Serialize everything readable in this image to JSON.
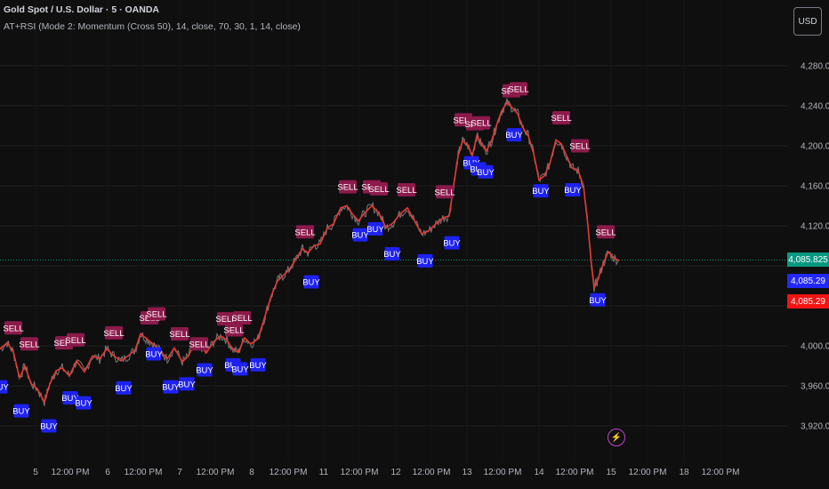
{
  "header": {
    "title": "Gold Spot / U.S. Dollar · 5 · OANDA",
    "indicator": "AT+RSI (Mode 2: Momentum (Cross 50), 14, close, 70, 30, 1, 14, close)",
    "currency": "USD"
  },
  "price_labels": [
    {
      "text": "4,085.825",
      "color": "#089981"
    },
    {
      "text": "4,085.29",
      "color": "#2229ff"
    },
    {
      "text": "4,085.29",
      "color": "#f21313"
    }
  ],
  "chart_data": {
    "type": "line",
    "series": [
      {
        "values": [
          {
            "x": 0,
            "y": 3997
          },
          {
            "x": 8,
            "y": 4003
          },
          {
            "x": 15,
            "y": 3994
          },
          {
            "x": 22,
            "y": 3968
          },
          {
            "x": 28,
            "y": 3980
          },
          {
            "x": 35,
            "y": 3962
          },
          {
            "x": 42,
            "y": 3957
          },
          {
            "x": 50,
            "y": 3944
          },
          {
            "x": 56,
            "y": 3962
          },
          {
            "x": 63,
            "y": 3975
          },
          {
            "x": 70,
            "y": 3978
          },
          {
            "x": 78,
            "y": 3970
          },
          {
            "x": 86,
            "y": 3985
          },
          {
            "x": 95,
            "y": 3974
          },
          {
            "x": 104,
            "y": 3990
          },
          {
            "x": 112,
            "y": 3987
          },
          {
            "x": 120,
            "y": 3997
          },
          {
            "x": 128,
            "y": 3990
          },
          {
            "x": 136,
            "y": 3985
          },
          {
            "x": 144,
            "y": 3990
          },
          {
            "x": 152,
            "y": 3996
          },
          {
            "x": 158,
            "y": 4012
          },
          {
            "x": 165,
            "y": 4007
          },
          {
            "x": 172,
            "y": 4002
          },
          {
            "x": 180,
            "y": 3995
          },
          {
            "x": 188,
            "y": 3987
          },
          {
            "x": 196,
            "y": 3998
          },
          {
            "x": 205,
            "y": 3984
          },
          {
            "x": 212,
            "y": 3990
          },
          {
            "x": 218,
            "y": 4002
          },
          {
            "x": 226,
            "y": 3999
          },
          {
            "x": 232,
            "y": 3993
          },
          {
            "x": 240,
            "y": 4004
          },
          {
            "x": 248,
            "y": 4010
          },
          {
            "x": 255,
            "y": 4006
          },
          {
            "x": 262,
            "y": 3996
          },
          {
            "x": 268,
            "y": 3994
          },
          {
            "x": 275,
            "y": 4008
          },
          {
            "x": 282,
            "y": 4002
          },
          {
            "x": 290,
            "y": 4007
          },
          {
            "x": 298,
            "y": 4030
          },
          {
            "x": 305,
            "y": 4050
          },
          {
            "x": 312,
            "y": 4065
          },
          {
            "x": 318,
            "y": 4070
          },
          {
            "x": 325,
            "y": 4076
          },
          {
            "x": 333,
            "y": 4087
          },
          {
            "x": 340,
            "y": 4097
          },
          {
            "x": 346,
            "y": 4093
          },
          {
            "x": 353,
            "y": 4100
          },
          {
            "x": 360,
            "y": 4102
          },
          {
            "x": 368,
            "y": 4118
          },
          {
            "x": 375,
            "y": 4122
          },
          {
            "x": 383,
            "y": 4138
          },
          {
            "x": 390,
            "y": 4140
          },
          {
            "x": 396,
            "y": 4132
          },
          {
            "x": 403,
            "y": 4125
          },
          {
            "x": 410,
            "y": 4133
          },
          {
            "x": 418,
            "y": 4140
          },
          {
            "x": 426,
            "y": 4133
          },
          {
            "x": 434,
            "y": 4118
          },
          {
            "x": 442,
            "y": 4123
          },
          {
            "x": 450,
            "y": 4132
          },
          {
            "x": 458,
            "y": 4138
          },
          {
            "x": 466,
            "y": 4125
          },
          {
            "x": 474,
            "y": 4112
          },
          {
            "x": 482,
            "y": 4115
          },
          {
            "x": 490,
            "y": 4122
          },
          {
            "x": 498,
            "y": 4128
          },
          {
            "x": 505,
            "y": 4130
          },
          {
            "x": 510,
            "y": 4160
          },
          {
            "x": 515,
            "y": 4190
          },
          {
            "x": 520,
            "y": 4205
          },
          {
            "x": 526,
            "y": 4200
          },
          {
            "x": 531,
            "y": 4190
          },
          {
            "x": 536,
            "y": 4210
          },
          {
            "x": 541,
            "y": 4202
          },
          {
            "x": 547,
            "y": 4195
          },
          {
            "x": 553,
            "y": 4206
          },
          {
            "x": 558,
            "y": 4220
          },
          {
            "x": 564,
            "y": 4235
          },
          {
            "x": 570,
            "y": 4243
          },
          {
            "x": 576,
            "y": 4238
          },
          {
            "x": 582,
            "y": 4232
          },
          {
            "x": 588,
            "y": 4218
          },
          {
            "x": 594,
            "y": 4210
          },
          {
            "x": 600,
            "y": 4192
          },
          {
            "x": 606,
            "y": 4166
          },
          {
            "x": 612,
            "y": 4170
          },
          {
            "x": 618,
            "y": 4182
          },
          {
            "x": 625,
            "y": 4206
          },
          {
            "x": 631,
            "y": 4202
          },
          {
            "x": 637,
            "y": 4190
          },
          {
            "x": 643,
            "y": 4178
          },
          {
            "x": 650,
            "y": 4175
          },
          {
            "x": 656,
            "y": 4160
          },
          {
            "x": 661,
            "y": 4120
          },
          {
            "x": 665,
            "y": 4080
          },
          {
            "x": 668,
            "y": 4058
          },
          {
            "x": 672,
            "y": 4066
          },
          {
            "x": 678,
            "y": 4082
          },
          {
            "x": 684,
            "y": 4094
          },
          {
            "x": 690,
            "y": 4088
          },
          {
            "x": 696,
            "y": 4085
          }
        ]
      }
    ],
    "signals": [
      {
        "type": "SELL",
        "x": 15,
        "y": 4018
      },
      {
        "x": 33,
        "y": 4002,
        "type": "SELL"
      },
      {
        "type": "SELL",
        "x": 72,
        "y": 4003
      },
      {
        "type": "SELL",
        "x": 85,
        "y": 4006
      },
      {
        "type": "SELL",
        "x": 128,
        "y": 4013
      },
      {
        "type": "SELL",
        "x": 168,
        "y": 4028
      },
      {
        "type": "SELL",
        "x": 176,
        "y": 4032
      },
      {
        "type": "SELL",
        "x": 202,
        "y": 4012
      },
      {
        "type": "SELL",
        "x": 224,
        "y": 4002
      },
      {
        "type": "SELL",
        "x": 254,
        "y": 4027
      },
      {
        "type": "SELL",
        "x": 263,
        "y": 4016
      },
      {
        "type": "SELL",
        "x": 272,
        "y": 4028
      },
      {
        "type": "SELL",
        "x": 343,
        "y": 4114
      },
      {
        "type": "SELL",
        "x": 391,
        "y": 4159
      },
      {
        "type": "SELL",
        "x": 418,
        "y": 4159
      },
      {
        "type": "SELL",
        "x": 426,
        "y": 4157
      },
      {
        "type": "SELL",
        "x": 457,
        "y": 4156
      },
      {
        "type": "SELL",
        "x": 500,
        "y": 4154
      },
      {
        "type": "SELL",
        "x": 521,
        "y": 4226
      },
      {
        "type": "SELL",
        "x": 534,
        "y": 4222
      },
      {
        "type": "SELL",
        "x": 541,
        "y": 4223
      },
      {
        "type": "SELL",
        "x": 575,
        "y": 4255
      },
      {
        "type": "SELL",
        "x": 583,
        "y": 4257
      },
      {
        "type": "SELL",
        "x": 631,
        "y": 4228
      },
      {
        "type": "SELL",
        "x": 652,
        "y": 4200
      },
      {
        "type": "SELL",
        "x": 681,
        "y": 4114
      },
      {
        "type": "BUY",
        "x": 0,
        "y": 3959
      },
      {
        "type": "BUY",
        "x": 24,
        "y": 3935
      },
      {
        "type": "BUY",
        "x": 55,
        "y": 3920
      },
      {
        "type": "BUY",
        "x": 79,
        "y": 3948
      },
      {
        "type": "BUY",
        "x": 94,
        "y": 3943
      },
      {
        "type": "BUY",
        "x": 139,
        "y": 3958
      },
      {
        "type": "BUY",
        "x": 173,
        "y": 3992
      },
      {
        "type": "BUY",
        "x": 192,
        "y": 3959
      },
      {
        "type": "BUY",
        "x": 210,
        "y": 3962
      },
      {
        "type": "BUY",
        "x": 230,
        "y": 3976
      },
      {
        "type": "BUY",
        "x": 262,
        "y": 3981
      },
      {
        "type": "BUY",
        "x": 270,
        "y": 3977
      },
      {
        "type": "BUY",
        "x": 290,
        "y": 3981
      },
      {
        "type": "BUY",
        "x": 350,
        "y": 4064
      },
      {
        "type": "BUY",
        "x": 405,
        "y": 4111
      },
      {
        "type": "BUY",
        "x": 422,
        "y": 4117
      },
      {
        "type": "BUY",
        "x": 441,
        "y": 4092
      },
      {
        "type": "BUY",
        "x": 478,
        "y": 4085
      },
      {
        "type": "BUY",
        "x": 508,
        "y": 4103
      },
      {
        "type": "BUY",
        "x": 530,
        "y": 4183
      },
      {
        "type": "BUY",
        "x": 538,
        "y": 4177
      },
      {
        "type": "BUY",
        "x": 546,
        "y": 4174
      },
      {
        "type": "BUY",
        "x": 578,
        "y": 4211
      },
      {
        "type": "BUY",
        "x": 608,
        "y": 4155
      },
      {
        "type": "BUY",
        "x": 644,
        "y": 4156
      },
      {
        "type": "BUY",
        "x": 672,
        "y": 4046
      }
    ],
    "yticks": [
      {
        "value": 4280,
        "label": "4,280.000"
      },
      {
        "value": 4240,
        "label": "4,240.000"
      },
      {
        "value": 4200,
        "label": "4,200.000"
      },
      {
        "value": 4160,
        "label": "4,160.000"
      },
      {
        "value": 4120,
        "label": "4,120.000"
      },
      {
        "value": 4000,
        "label": "4,000.000"
      },
      {
        "value": 3960,
        "label": "3,960.000"
      },
      {
        "value": 3920,
        "label": "3,920.000"
      }
    ],
    "gridlines": [
      4280,
      4240,
      4200,
      4160,
      4120,
      4080,
      4040,
      4000,
      3960,
      3920
    ],
    "xticks": [
      {
        "x": 40,
        "label": "5"
      },
      {
        "x": 79,
        "label": "12:00 PM"
      },
      {
        "x": 121,
        "label": "6"
      },
      {
        "x": 161,
        "label": "12:00 PM"
      },
      {
        "x": 202,
        "label": "7"
      },
      {
        "x": 242,
        "label": "12:00 PM"
      },
      {
        "x": 283,
        "label": "8"
      },
      {
        "x": 324,
        "label": "12:00 PM"
      },
      {
        "x": 364,
        "label": "11"
      },
      {
        "x": 404,
        "label": "12:00 PM"
      },
      {
        "x": 445,
        "label": "12"
      },
      {
        "x": 485,
        "label": "12:00 PM"
      },
      {
        "x": 525,
        "label": "13"
      },
      {
        "x": 565,
        "label": "12:00 PM"
      },
      {
        "x": 606,
        "label": "14"
      },
      {
        "x": 646,
        "label": "12:00 PM"
      },
      {
        "x": 687,
        "label": "15"
      },
      {
        "x": 728,
        "label": "12:00 PM"
      },
      {
        "x": 769,
        "label": "18"
      },
      {
        "x": 810,
        "label": "12:00 PM"
      }
    ],
    "last_price": 4085.825,
    "colors": {
      "line": "#e53935",
      "price_noise": "#9e9e9e",
      "sell": "#8c1a4b",
      "buy": "#1e22f0",
      "grid": "#1f1f1f",
      "last_price_line": "#089981"
    }
  }
}
